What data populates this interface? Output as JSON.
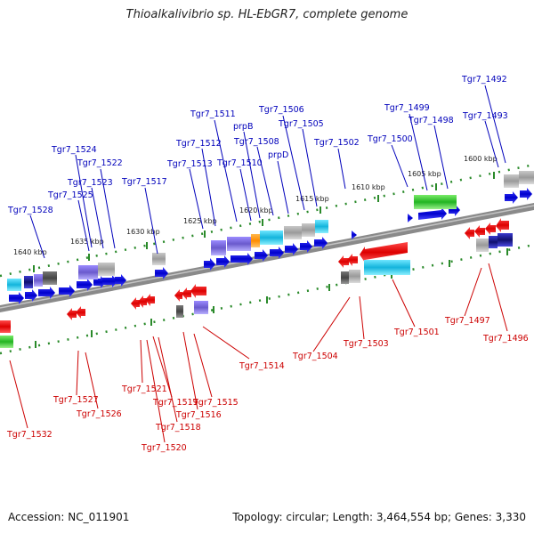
{
  "title": "Thioalkalivibrio sp. HL-EbGR7, complete genome",
  "accession": "Accession: NC_011901",
  "summary": "Topology: circular; Length: 3,464,554 bp; Genes: 3,330",
  "colors": {
    "forward_gene": "#0000dd",
    "reverse_gene": "#ee0000",
    "forward_label": "#0000bb",
    "reverse_label": "#cc0000",
    "backbone": "#808080",
    "tick": "#2a8a2a",
    "feature_purple": "#7b68ee",
    "feature_gray": "#a9a9a9",
    "feature_cyan": "#1ec8e6",
    "feature_green": "#32c832",
    "feature_orange": "#ff8c00",
    "feature_navy": "#1a1a9a"
  },
  "kbp_ticks": [
    "1640 kbp",
    "1635 kbp",
    "1630 kbp",
    "1625 kbp",
    "1620 kbp",
    "1615 kbp",
    "1610 kbp",
    "1605 kbp",
    "1600 kbp"
  ],
  "forward_labels": [
    "Tgr7_1492",
    "Tgr7_1493",
    "Tgr7_1498",
    "Tgr7_1499",
    "Tgr7_1500",
    "Tgr7_1502",
    "Tgr7_1505",
    "Tgr7_1506",
    "prpD",
    "Tgr7_1508",
    "prpB",
    "Tgr7_1510",
    "Tgr7_1511",
    "Tgr7_1512",
    "Tgr7_1513",
    "Tgr7_1517",
    "Tgr7_1522",
    "Tgr7_1523",
    "Tgr7_1524",
    "Tgr7_1525",
    "Tgr7_1528"
  ],
  "reverse_labels": [
    "Tgr7_1496",
    "Tgr7_1497",
    "Tgr7_1501",
    "Tgr7_1503",
    "Tgr7_1504",
    "Tgr7_1514",
    "Tgr7_1515",
    "Tgr7_1516",
    "Tgr7_1518",
    "Tgr7_1519",
    "Tgr7_1520",
    "Tgr7_1521",
    "Tgr7_1526",
    "Tgr7_1527",
    "Tgr7_1532"
  ]
}
